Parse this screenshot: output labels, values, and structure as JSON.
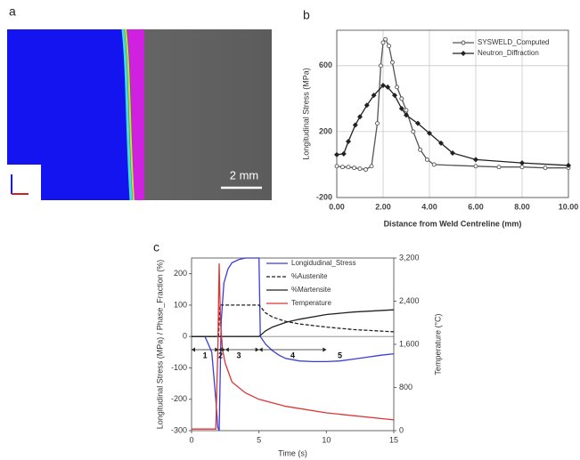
{
  "image_panel": {
    "label": "a",
    "scale_bar": "2 mm"
  },
  "chart_data": [
    {
      "label": "b",
      "type": "line",
      "xlabel": "Distance from Weld Centreline (mm)",
      "ylabel": "Longitudinal Stress (MPa)",
      "xlim": [
        0,
        10
      ],
      "xticks": [
        {
          "value": 0,
          "label": "0.00"
        },
        {
          "value": 2,
          "label": "2.00"
        },
        {
          "value": 4,
          "label": "4.00"
        },
        {
          "value": 6,
          "label": "6.00"
        },
        {
          "value": 8,
          "label": "8.00"
        },
        {
          "value": 10,
          "label": "10.00"
        }
      ],
      "ylim": [
        -200,
        815
      ],
      "yticks": [
        -200,
        200,
        600
      ],
      "grid": true,
      "legend": "upper right",
      "series": [
        {
          "name": "SYSWELD_Computed",
          "color": "#555555",
          "marker": "open-circle",
          "x": [
            0,
            0.25,
            0.5,
            0.75,
            1.0,
            1.25,
            1.5,
            1.75,
            1.9,
            2.0,
            2.1,
            2.25,
            2.4,
            2.6,
            2.8,
            3.0,
            3.3,
            3.6,
            3.9,
            4.2,
            6.0,
            7.0,
            8.0,
            9.0,
            10.0
          ],
          "values": [
            -10,
            -15,
            -15,
            -20,
            -25,
            -30,
            -10,
            250,
            600,
            740,
            760,
            720,
            620,
            470,
            400,
            330,
            200,
            90,
            30,
            0,
            -10,
            -15,
            -15,
            -20,
            -20
          ]
        },
        {
          "name": "Neutron_Diffraction",
          "color": "#222222",
          "marker": "filled-diamond",
          "x": [
            0,
            0.3,
            0.5,
            0.8,
            1.0,
            1.3,
            1.6,
            2.0,
            2.2,
            2.5,
            2.8,
            3.0,
            3.5,
            4.0,
            4.5,
            5.0,
            6.0,
            8.0,
            10.0
          ],
          "values": [
            60,
            65,
            140,
            240,
            290,
            360,
            420,
            480,
            470,
            420,
            340,
            300,
            250,
            190,
            130,
            70,
            30,
            10,
            -5
          ]
        }
      ]
    },
    {
      "label": "c",
      "type": "line",
      "xlabel": "Time (s)",
      "ylabel": "Longitudinal Stress (MPa) / Phase_Fraction (%)",
      "y2label": "Temperature (°C)",
      "xlim": [
        0,
        15
      ],
      "xticks": [
        0,
        5,
        10,
        15
      ],
      "ylim": [
        -300,
        250
      ],
      "yticks": [
        -300,
        -200,
        -100,
        0,
        100,
        200
      ],
      "y2lim": [
        0,
        3200
      ],
      "y2ticks": [
        0,
        800,
        {
          "value": 1600,
          "label": "1,600"
        },
        {
          "value": 2400,
          "label": "2,400"
        },
        {
          "value": 3200,
          "label": "3,200"
        }
      ],
      "grid": false,
      "legend": "upper right",
      "annotations": [
        "1",
        "2",
        "3",
        "4",
        "5"
      ],
      "series": [
        {
          "name": "Longidudinal_Stress",
          "color": "#3b3bdc",
          "dash": "solid",
          "x": [
            0,
            1.0,
            1.5,
            1.8,
            1.95,
            2.05,
            2.2,
            2.4,
            2.7,
            3.0,
            3.5,
            4.0,
            4.5,
            5.0,
            5.1,
            5.5,
            6.0,
            6.5,
            7.0,
            8.0,
            9.0,
            10.0,
            11.0,
            12.0,
            13.0,
            14.0,
            15.0
          ],
          "values": [
            0,
            0,
            -50,
            -200,
            -290,
            -300,
            50,
            170,
            215,
            235,
            245,
            250,
            250,
            250,
            0,
            -25,
            -45,
            -60,
            -70,
            -78,
            -80,
            -80,
            -78,
            -72,
            -66,
            -60,
            -55
          ]
        },
        {
          "name": "%Austenite",
          "color": "#222222",
          "dash": "dashed",
          "x": [
            0,
            2.0,
            2.1,
            5.0,
            5.5,
            6.0,
            7.0,
            8.0,
            10.0,
            12.0,
            15.0
          ],
          "values": [
            0,
            0,
            100,
            100,
            75,
            62,
            48,
            40,
            30,
            22,
            15
          ]
        },
        {
          "name": "%Martensite",
          "color": "#222222",
          "dash": "solid",
          "x": [
            0,
            5.0,
            5.5,
            6.0,
            7.0,
            8.0,
            10.0,
            12.0,
            15.0
          ],
          "values": [
            0,
            0,
            18,
            30,
            45,
            55,
            70,
            78,
            85
          ]
        },
        {
          "name": "Temperature",
          "color": "#e03434",
          "dash": "solid",
          "axis": "y2",
          "x": [
            0,
            1.8,
            1.95,
            2.05,
            2.15,
            2.3,
            2.5,
            3.0,
            4.0,
            5.0,
            7.0,
            10.0,
            15.0
          ],
          "values": [
            30,
            30,
            1500,
            3100,
            2000,
            1500,
            1250,
            900,
            700,
            580,
            450,
            330,
            200
          ]
        }
      ]
    }
  ]
}
